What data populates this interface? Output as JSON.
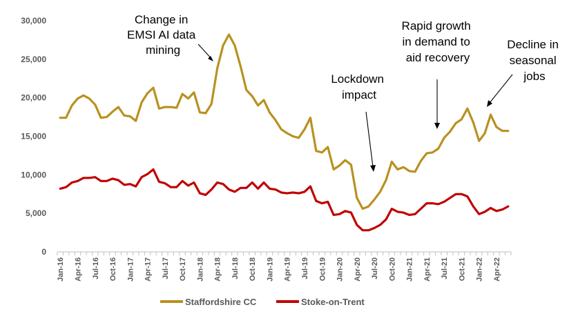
{
  "chart_data": {
    "type": "line",
    "title": "",
    "xlabel": "",
    "ylabel": "",
    "ylim": [
      0,
      30000
    ],
    "yticks": [
      0,
      5000,
      10000,
      15000,
      20000,
      25000,
      30000
    ],
    "ytick_labels": [
      "0",
      "5,000",
      "10,000",
      "15,000",
      "20,000",
      "25,000",
      "30,000"
    ],
    "grid": false,
    "legend_position": "bottom",
    "x": [
      "Jan-16",
      "Feb-16",
      "Mar-16",
      "Apr-16",
      "May-16",
      "Jun-16",
      "Jul-16",
      "Aug-16",
      "Sep-16",
      "Oct-16",
      "Nov-16",
      "Dec-16",
      "Jan-17",
      "Feb-17",
      "Mar-17",
      "Apr-17",
      "May-17",
      "Jun-17",
      "Jul-17",
      "Aug-17",
      "Sep-17",
      "Oct-17",
      "Nov-17",
      "Dec-17",
      "Jan-18",
      "Feb-18",
      "Mar-18",
      "Apr-18",
      "May-18",
      "Jun-18",
      "Jul-18",
      "Aug-18",
      "Sep-18",
      "Oct-18",
      "Nov-18",
      "Dec-18",
      "Jan-19",
      "Feb-19",
      "Mar-19",
      "Apr-19",
      "May-19",
      "Jun-19",
      "Jul-19",
      "Aug-19",
      "Sep-19",
      "Oct-19",
      "Nov-19",
      "Dec-19",
      "Jan-20",
      "Feb-20",
      "Mar-20",
      "Apr-20",
      "May-20",
      "Jun-20",
      "Jul-20",
      "Aug-20",
      "Sep-20",
      "Oct-20",
      "Nov-20",
      "Dec-20",
      "Jan-21",
      "Feb-21",
      "Mar-21",
      "Apr-21",
      "May-21",
      "Jun-21",
      "Jul-21",
      "Aug-21",
      "Sep-21",
      "Oct-21",
      "Nov-21",
      "Dec-21",
      "Jan-22",
      "Feb-22",
      "Mar-22",
      "Apr-22",
      "May-22",
      "Jun-22"
    ],
    "x_tick_labels": [
      "Jan-16",
      "Apr-16",
      "Jul-16",
      "Oct-16",
      "Jan-17",
      "Apr-17",
      "Jul-17",
      "Oct-17",
      "Jan-18",
      "Apr-18",
      "Jul-18",
      "Oct-18",
      "Jan-19",
      "Apr-19",
      "Jul-19",
      "Oct-19",
      "Jan-20",
      "Apr-20",
      "Jul-20",
      "Oct-20",
      "Jan-21",
      "Apr-21",
      "Jul-21",
      "Oct-21",
      "Jan-22",
      "Apr-22"
    ],
    "series": [
      {
        "name": "Staffordshire CC",
        "color": "#b8911f",
        "values": [
          17400,
          17400,
          19000,
          19900,
          20300,
          19900,
          19100,
          17400,
          17500,
          18200,
          18800,
          17700,
          17600,
          17000,
          19400,
          20600,
          21300,
          18600,
          18800,
          18800,
          18700,
          20500,
          19900,
          20700,
          18100,
          18000,
          19200,
          23800,
          26800,
          28200,
          26800,
          24100,
          21000,
          20200,
          19000,
          19700,
          18100,
          17100,
          15900,
          15400,
          15000,
          14800,
          15900,
          17400,
          13100,
          12900,
          13600,
          10700,
          11200,
          11900,
          11300,
          7000,
          5600,
          5900,
          6800,
          7800,
          9300,
          11700,
          10700,
          11000,
          10500,
          10400,
          11800,
          12800,
          12900,
          13400,
          14800,
          15600,
          16700,
          17200,
          18600,
          16800,
          14400,
          15400,
          17800,
          16200,
          15700,
          15700
        ]
      },
      {
        "name": "Stoke-on-Trent",
        "color": "#c00000",
        "values": [
          8200,
          8400,
          9000,
          9200,
          9600,
          9600,
          9700,
          9200,
          9200,
          9500,
          9300,
          8700,
          8800,
          8500,
          9700,
          10100,
          10700,
          9100,
          8900,
          8400,
          8400,
          9200,
          8600,
          9000,
          7600,
          7400,
          8100,
          9000,
          8800,
          8100,
          7800,
          8300,
          8300,
          9000,
          8200,
          9000,
          8200,
          8100,
          7700,
          7600,
          7700,
          7600,
          7800,
          8500,
          6600,
          6300,
          6500,
          4800,
          4900,
          5300,
          5100,
          3500,
          2800,
          2800,
          3100,
          3500,
          4200,
          5600,
          5200,
          5100,
          4800,
          4900,
          5600,
          6300,
          6300,
          6200,
          6500,
          7000,
          7500,
          7500,
          7200,
          5900,
          4900,
          5200,
          5700,
          5300,
          5500,
          5900
        ]
      }
    ],
    "annotations": [
      {
        "lines": [
          "Change in",
          "EMSI AI data",
          "mining"
        ],
        "target": "Jun-18"
      },
      {
        "lines": [
          "Lockdown",
          "impact"
        ],
        "target": "Jul-20"
      },
      {
        "lines": [
          "Rapid growth",
          "in demand to",
          "aid recovery"
        ],
        "target": "Jul-21"
      },
      {
        "lines": [
          "Decline in",
          "seasonal",
          "jobs"
        ],
        "target": "Apr-22"
      }
    ]
  }
}
